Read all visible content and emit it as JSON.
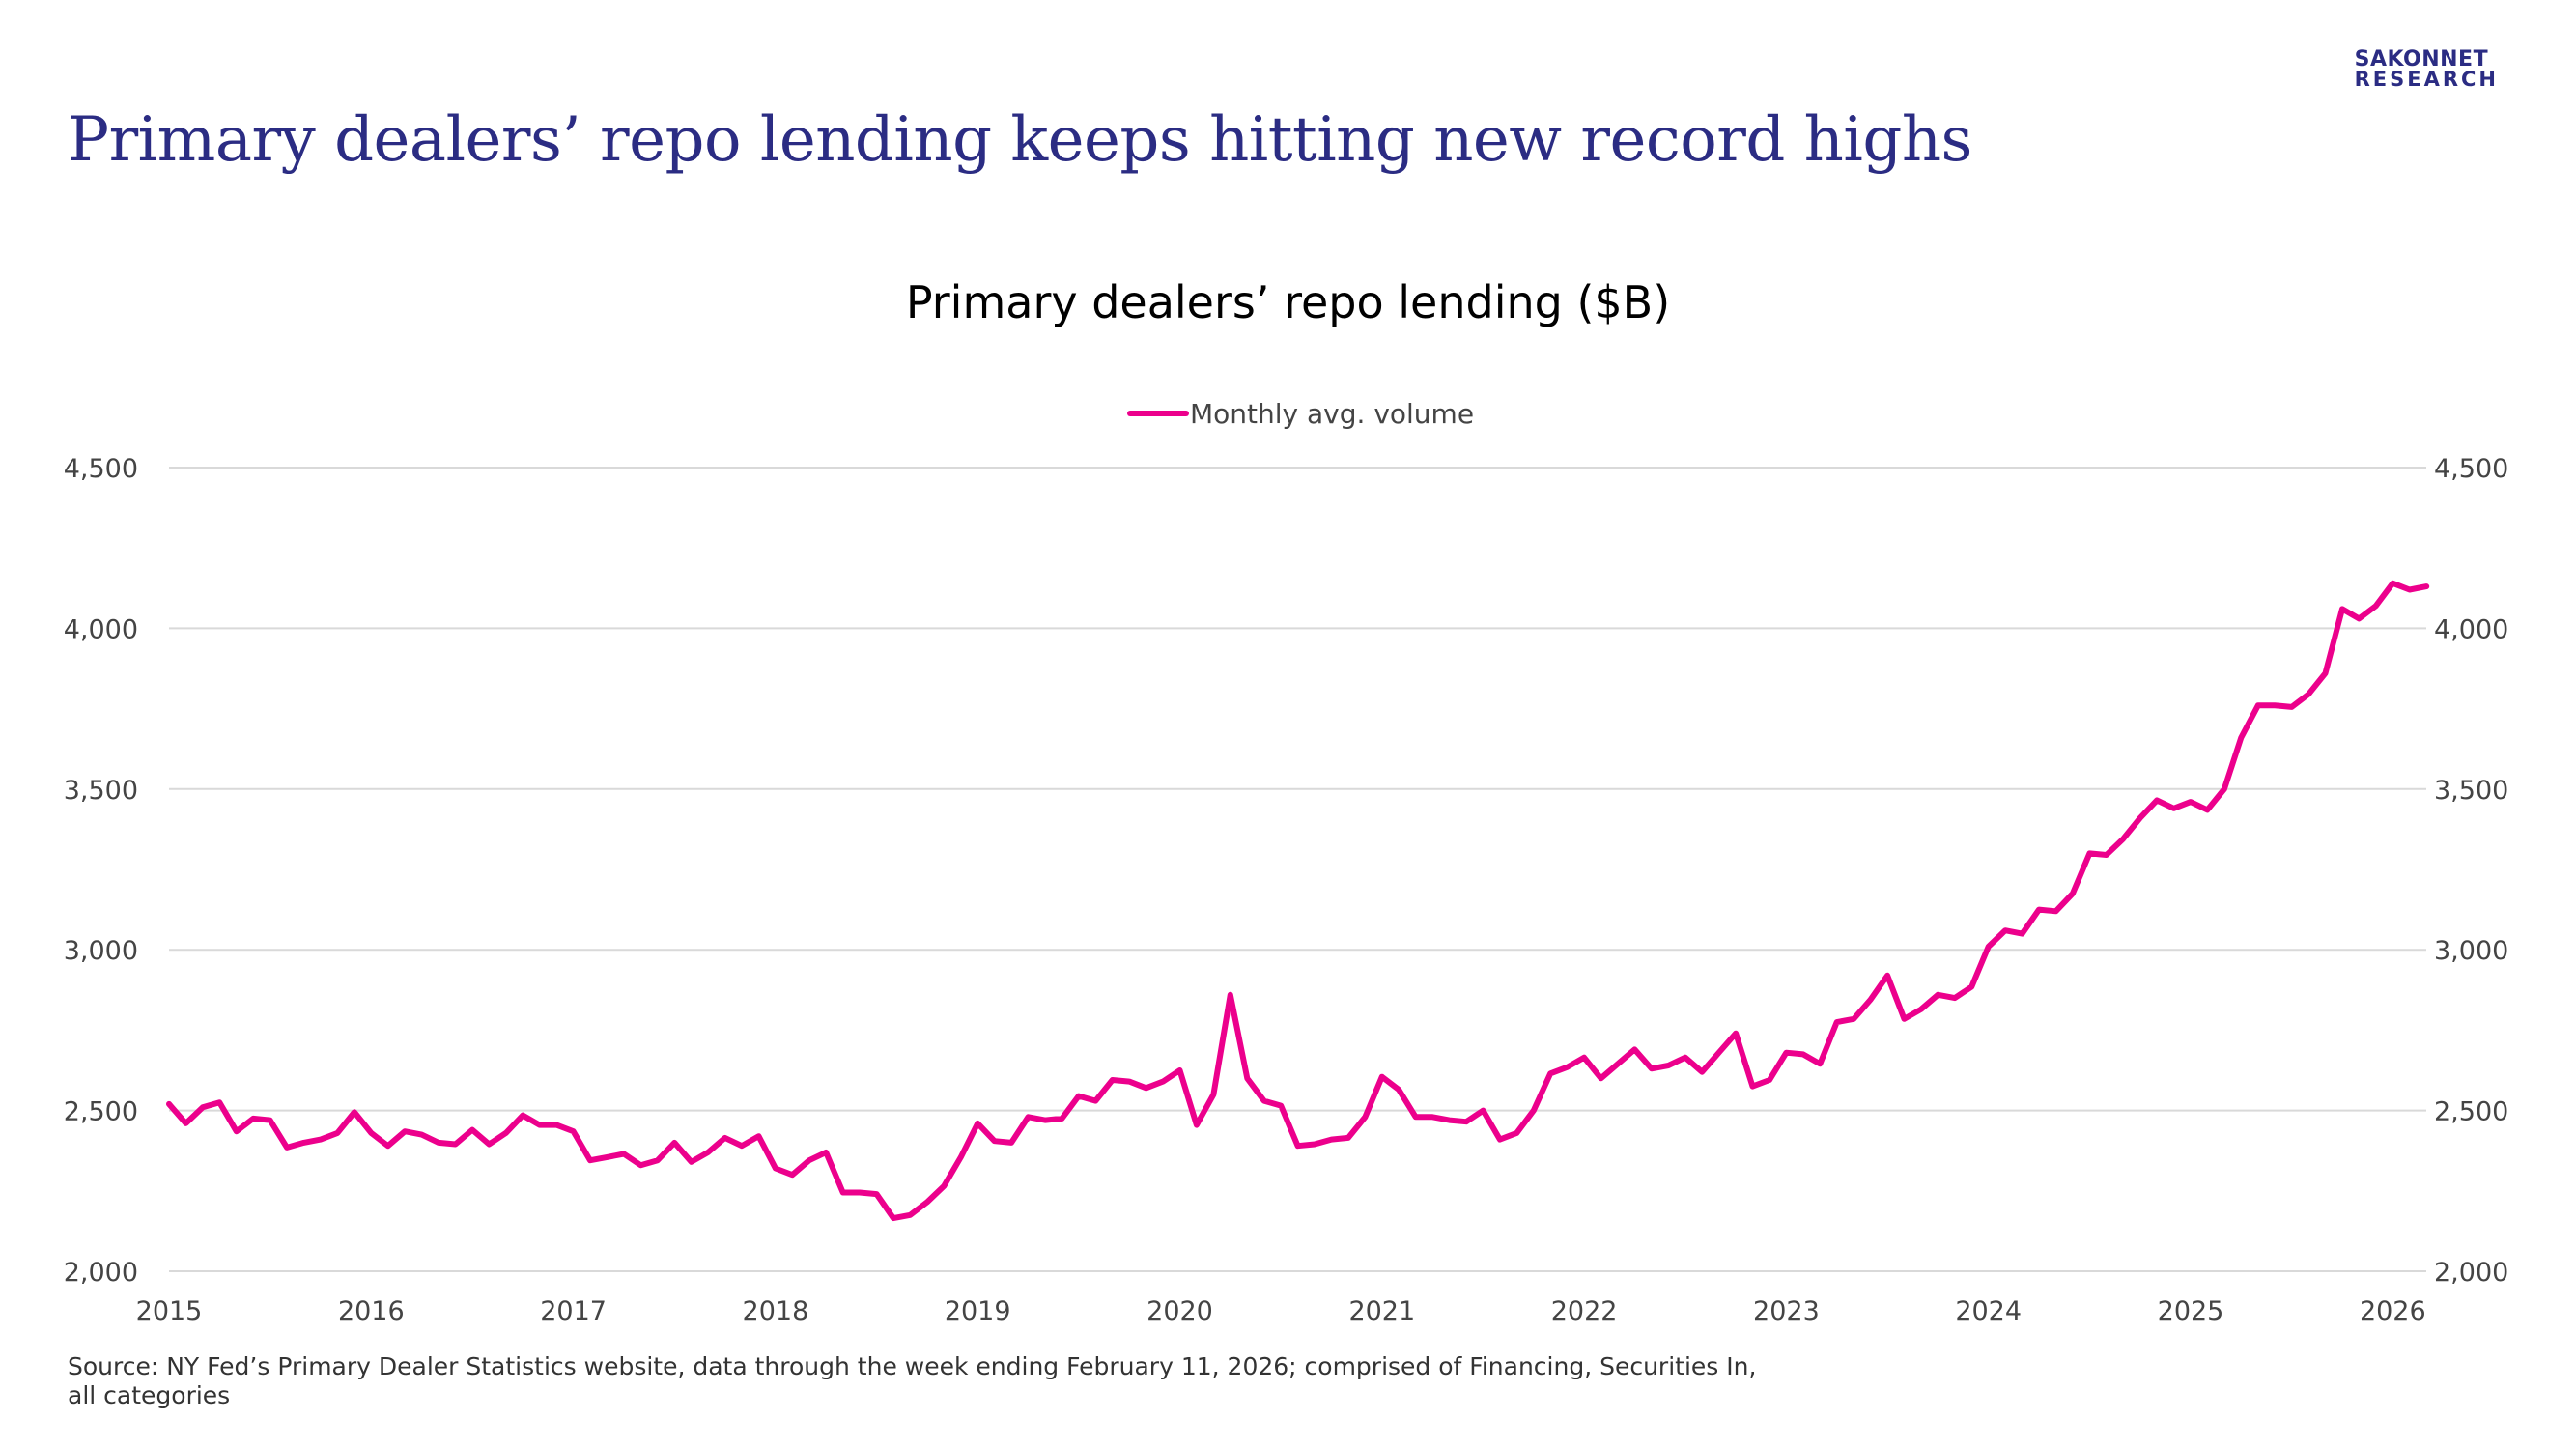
{
  "slide": {
    "title": "Primary dealers’ repo lending keeps hitting new record highs",
    "logo_line1": "SAKONNET",
    "logo_line2": "RESEARCH",
    "source": "Source: NY Fed’s Primary Dealer Statistics website, data through the week ending February 11, 2026; comprised of Financing, Securities In, all categories"
  },
  "colors": {
    "title": "#2b2c83",
    "series": "#ec008c",
    "grid": "#d9d9d9"
  },
  "chart_data": {
    "type": "line",
    "title": "Primary dealers’ repo lending ($B)",
    "xlabel": "",
    "ylabel": "",
    "ylim": [
      2000,
      4500
    ],
    "yticks": [
      2000,
      2500,
      3000,
      3500,
      4000,
      4500
    ],
    "ytick_labels": [
      "2,000",
      "2,500",
      "3,000",
      "3,500",
      "4,000",
      "4,500"
    ],
    "xticks": [
      2015,
      2016,
      2017,
      2018,
      2019,
      2020,
      2021,
      2022,
      2023,
      2024,
      2025,
      2026
    ],
    "xtick_labels": [
      "2015",
      "2016",
      "2017",
      "2018",
      "2019",
      "2020",
      "2021",
      "2022",
      "2023",
      "2024",
      "2025",
      "2026"
    ],
    "secondary_axis": "mirrored",
    "grid": "horizontal",
    "legend_position": "top-center",
    "x_start": "2015-01",
    "x_step": "month",
    "series": [
      {
        "name": "Monthly avg. volume",
        "values": [
          2520,
          2460,
          2510,
          2525,
          2435,
          2475,
          2470,
          2385,
          2400,
          2410,
          2430,
          2495,
          2430,
          2390,
          2435,
          2425,
          2400,
          2395,
          2440,
          2395,
          2430,
          2485,
          2455,
          2455,
          2435,
          2345,
          2355,
          2365,
          2330,
          2345,
          2400,
          2340,
          2370,
          2415,
          2390,
          2420,
          2320,
          2300,
          2345,
          2370,
          2245,
          2245,
          2240,
          2165,
          2175,
          2215,
          2265,
          2355,
          2460,
          2405,
          2400,
          2480,
          2470,
          2475,
          2545,
          2530,
          2595,
          2590,
          2570,
          2590,
          2625,
          2455,
          2550,
          2860,
          2600,
          2530,
          2515,
          2390,
          2395,
          2410,
          2415,
          2480,
          2605,
          2565,
          2480,
          2480,
          2470,
          2465,
          2500,
          2410,
          2430,
          2500,
          2615,
          2635,
          2665,
          2600,
          2645,
          2690,
          2630,
          2640,
          2665,
          2620,
          2680,
          2740,
          2575,
          2595,
          2680,
          2675,
          2645,
          2775,
          2785,
          2845,
          2920,
          2785,
          2815,
          2860,
          2850,
          2885,
          3010,
          3060,
          3050,
          3125,
          3120,
          3175,
          3300,
          3295,
          3345,
          3410,
          3465,
          3440,
          3460,
          3435,
          3500,
          3660,
          3760,
          3760,
          3755,
          3795,
          3860,
          4060,
          4030,
          4070,
          4140,
          4120,
          4130
        ]
      }
    ]
  }
}
